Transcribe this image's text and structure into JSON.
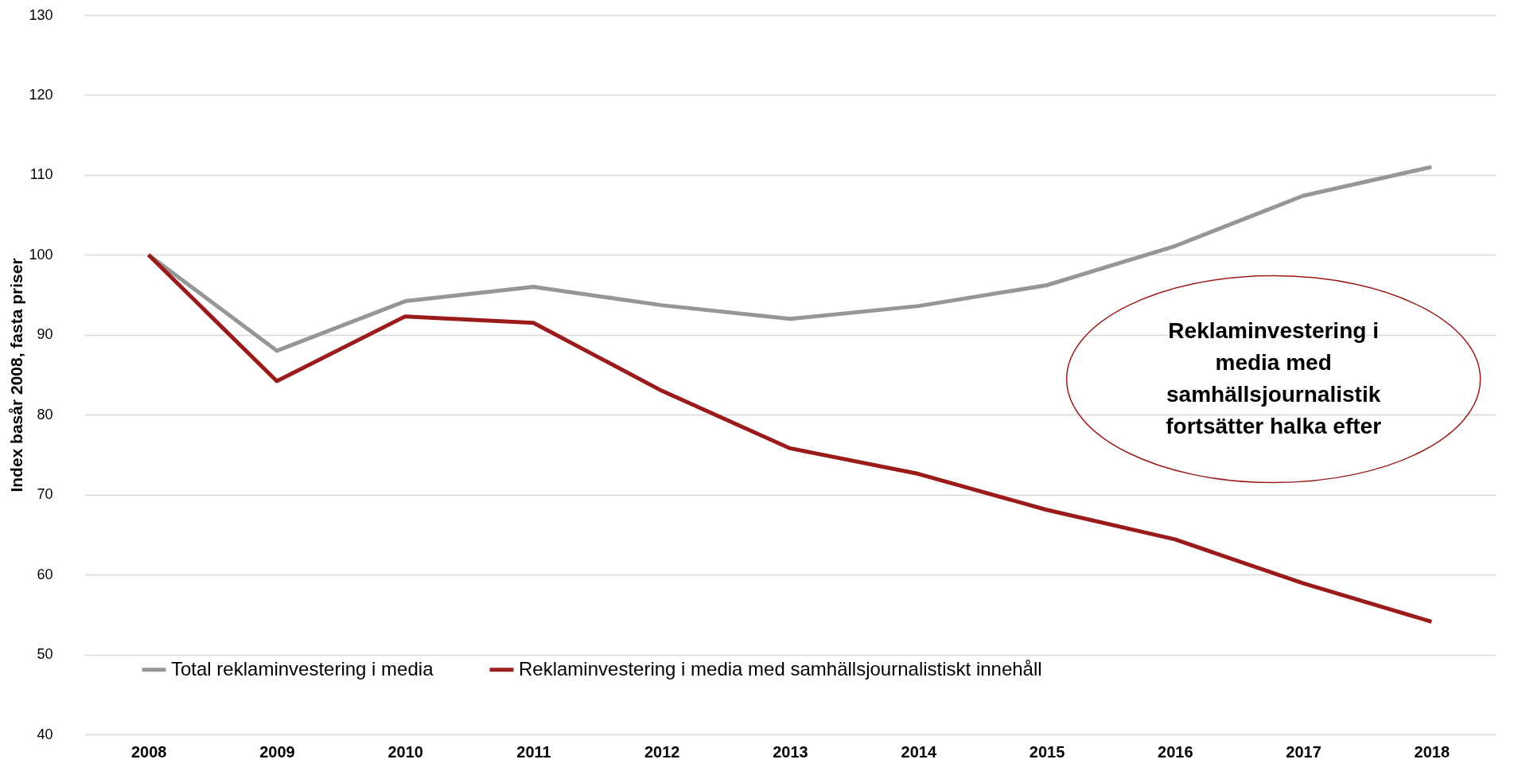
{
  "chart_data": {
    "type": "line",
    "ylabel": "Index basår 2008, fasta priser",
    "categories": [
      "2008",
      "2009",
      "2010",
      "2011",
      "2012",
      "2013",
      "2014",
      "2015",
      "2016",
      "2017",
      "2018"
    ],
    "series": [
      {
        "name": "Total reklaminvestering i media",
        "color": "#969696",
        "values": [
          100,
          88.0,
          94.2,
          96.0,
          93.7,
          92.0,
          93.6,
          96.2,
          101.1,
          107.4,
          111.0
        ]
      },
      {
        "name": "Reklaminvestering i media med samhällsjournalistiskt innehåll",
        "color": "#9b1b1b",
        "values": [
          100,
          84.2,
          92.3,
          91.5,
          83.0,
          75.8,
          72.6,
          68.1,
          64.4,
          58.9,
          54.1
        ]
      }
    ],
    "ylim": [
      40,
      130
    ],
    "yticks": [
      40,
      50,
      60,
      70,
      80,
      90,
      100,
      110,
      120,
      130
    ],
    "grid": "y",
    "legend": "bottom",
    "marker": "none",
    "line_style": "solid",
    "annotations": [
      "Reklaminvestering i\nmedia med\nsamhällsjournalistik\nfortsätter halka efter"
    ]
  }
}
